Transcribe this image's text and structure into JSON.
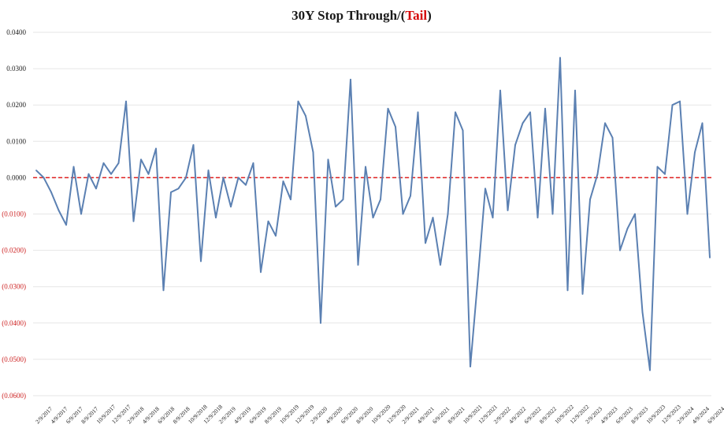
{
  "chart_data": {
    "type": "line",
    "title_parts": [
      {
        "text": "30Y Stop Through/(",
        "color": "#1a1a1a"
      },
      {
        "text": "Tail",
        "color": "#d40000"
      },
      {
        "text": ")",
        "color": "#1a1a1a"
      }
    ],
    "ylim": [
      -0.06,
      0.04
    ],
    "yticks": [
      {
        "value": 0.04,
        "label": "0.0400"
      },
      {
        "value": 0.03,
        "label": "0.0300"
      },
      {
        "value": 0.02,
        "label": "0.0200"
      },
      {
        "value": 0.01,
        "label": "0.0100"
      },
      {
        "value": 0.0,
        "label": "0.0000"
      },
      {
        "value": -0.01,
        "label": "(0.0100)"
      },
      {
        "value": -0.02,
        "label": "(0.0200)"
      },
      {
        "value": -0.03,
        "label": "(0.0300)"
      },
      {
        "value": -0.04,
        "label": "(0.0400)"
      },
      {
        "value": -0.05,
        "label": "(0.0500)"
      },
      {
        "value": -0.06,
        "label": "(0.0600)"
      }
    ],
    "xticks": [
      "2/9/2017",
      "4/9/2017",
      "6/9/2017",
      "8/9/2017",
      "10/9/2017",
      "12/9/2017",
      "2/9/2018",
      "4/9/2018",
      "6/9/2018",
      "8/9/2018",
      "10/9/2018",
      "12/9/2018",
      "2/9/2019",
      "4/9/2019",
      "6/9/2019",
      "8/9/2019",
      "10/9/2019",
      "12/9/2019",
      "2/9/2020",
      "4/9/2020",
      "6/9/2020",
      "8/9/2020",
      "10/9/2020",
      "12/9/2020",
      "2/9/2021",
      "4/9/2021",
      "6/9/2021",
      "8/9/2021",
      "10/9/2021",
      "12/9/2021",
      "2/9/2022",
      "4/9/2022",
      "6/9/2022",
      "8/9/2022",
      "10/9/2022",
      "12/9/2022",
      "2/9/2023",
      "4/9/2023",
      "6/9/2023",
      "8/9/2023",
      "10/9/2023",
      "12/9/2023",
      "2/9/2024",
      "4/9/2024",
      "6/9/2024"
    ],
    "values": [
      0.002,
      0.0,
      -0.004,
      -0.009,
      -0.013,
      0.003,
      -0.01,
      0.001,
      -0.003,
      0.004,
      0.001,
      0.004,
      0.021,
      -0.012,
      0.005,
      0.001,
      0.008,
      -0.031,
      -0.004,
      -0.003,
      0.0,
      0.009,
      -0.023,
      0.002,
      -0.011,
      0.0,
      -0.008,
      0.0,
      -0.002,
      0.004,
      -0.026,
      -0.012,
      -0.016,
      -0.001,
      -0.006,
      0.021,
      0.017,
      0.007,
      -0.04,
      0.005,
      -0.008,
      -0.006,
      0.027,
      -0.024,
      0.003,
      -0.011,
      -0.006,
      0.019,
      0.014,
      -0.01,
      -0.005,
      0.018,
      -0.018,
      -0.011,
      -0.024,
      -0.01,
      0.018,
      0.013,
      -0.052,
      -0.028,
      -0.003,
      -0.011,
      0.024,
      -0.009,
      0.009,
      0.015,
      0.018,
      -0.011,
      0.019,
      -0.01,
      0.033,
      -0.031,
      0.024,
      -0.032,
      -0.006,
      0.001,
      0.015,
      0.011,
      -0.02,
      -0.014,
      -0.01,
      -0.037,
      -0.053,
      0.003,
      0.001,
      0.02,
      0.021,
      -0.01,
      0.007,
      0.015,
      -0.022
    ],
    "line_color": "#5b80b2",
    "zero_line_color": "#e02020",
    "grid": true,
    "legend": "none"
  }
}
